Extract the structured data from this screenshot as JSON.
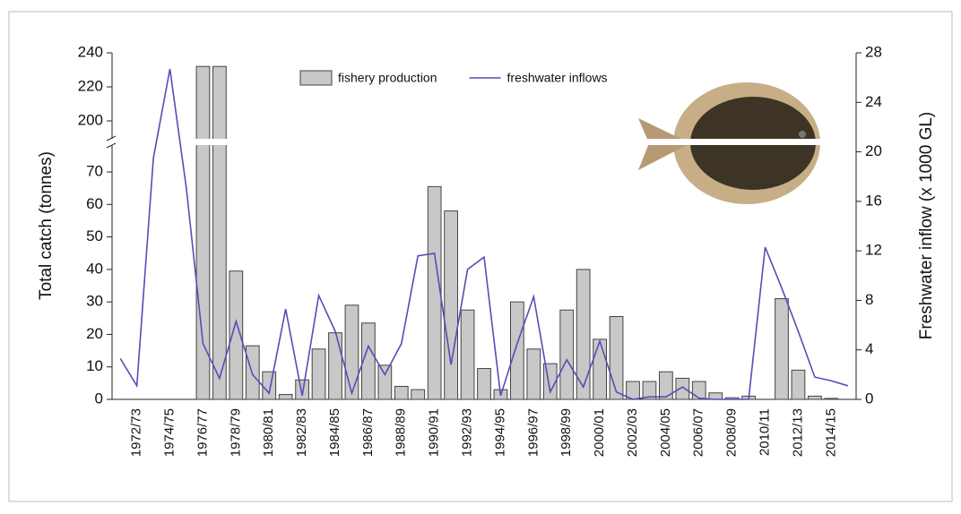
{
  "chart_data": {
    "type": "bar_line",
    "y_label": "Total catch (tonnes)",
    "y2_label": "Freshwater inflow (x 1000 GL)",
    "categories": [
      null,
      "1972/73",
      null,
      "1974/75",
      null,
      "1976/77",
      null,
      "1978/79",
      null,
      "1980/81",
      null,
      "1982/83",
      null,
      "1984/85",
      null,
      "1986/87",
      null,
      "1988/89",
      null,
      "1990/91",
      null,
      "1992/93",
      null,
      "1994/95",
      null,
      "1996/97",
      null,
      "1998/99",
      null,
      "2000/01",
      null,
      "2002/03",
      null,
      "2004/05",
      null,
      "2006/07",
      null,
      "2008/09",
      null,
      "2010/11",
      null,
      "2012/13",
      null,
      "2014/15",
      null
    ],
    "series": [
      {
        "name": "fishery production",
        "type": "bar",
        "color": "#c9c7c7",
        "axis": "y",
        "values": [
          null,
          null,
          null,
          null,
          null,
          232,
          232,
          39.5,
          16.5,
          8.5,
          1.5,
          6,
          15.5,
          20.5,
          29,
          23.5,
          10.5,
          4,
          3,
          65.5,
          58,
          27.5,
          9.5,
          3,
          30,
          15.5,
          11,
          27.5,
          40,
          18.5,
          25.5,
          5.5,
          5.5,
          8.5,
          6.5,
          5.5,
          2,
          0.5,
          1,
          0,
          31,
          9,
          1,
          0.3,
          null
        ]
      },
      {
        "name": "freshwater inflows",
        "type": "line",
        "color": "#5a4bb5",
        "axis": "y2",
        "values": [
          3.3,
          1.1,
          19.5,
          26.7,
          17,
          4.5,
          1.7,
          6.3,
          2,
          0.5,
          7.3,
          0.3,
          8.4,
          5.5,
          0.5,
          4.3,
          2,
          4.5,
          11.6,
          11.8,
          2.8,
          10.5,
          11.5,
          0.3,
          4.5,
          8.3,
          0.6,
          3.2,
          1,
          4.7,
          0.6,
          0,
          0.2,
          0.2,
          1,
          0.1,
          0,
          0,
          0,
          12.3,
          9,
          5.5,
          1.8,
          1.5,
          1.1
        ]
      }
    ],
    "ylim": [
      0,
      240
    ],
    "y_break": [
      78,
      190
    ],
    "yticks": [
      0,
      10,
      20,
      30,
      40,
      50,
      60,
      70,
      200,
      220,
      240
    ],
    "y2lim": [
      0,
      28
    ],
    "y2ticks": [
      0,
      4,
      8,
      12,
      16,
      20,
      24,
      28
    ],
    "legend": "top"
  }
}
